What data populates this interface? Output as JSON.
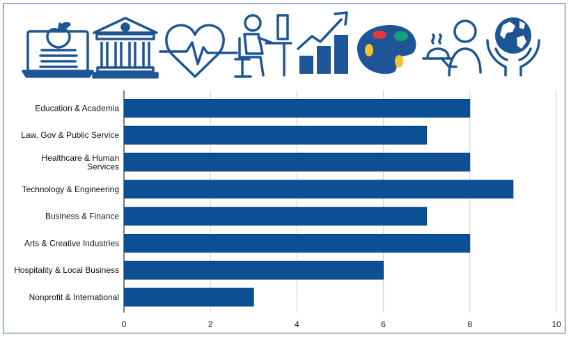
{
  "theme": {
    "bar_color": "#0d4f94",
    "icon_color": "#1e5596",
    "grid_color": "#cfcfcf",
    "frame_color": "#2c5fa0"
  },
  "icons": [
    {
      "name": "laptop-apple-books-icon"
    },
    {
      "name": "government-building-icon"
    },
    {
      "name": "heart-pulse-icon"
    },
    {
      "name": "person-at-computer-icon"
    },
    {
      "name": "growth-bar-chart-icon"
    },
    {
      "name": "paint-palette-icon"
    },
    {
      "name": "waiter-serving-icon"
    },
    {
      "name": "hands-holding-globe-icon"
    }
  ],
  "chart_data": {
    "type": "bar",
    "orientation": "horizontal",
    "categories": [
      [
        "Education & Academia"
      ],
      [
        "Law, Gov & Public Service"
      ],
      [
        "Healthcare & Human",
        "Services"
      ],
      [
        "Technology & Engineering"
      ],
      [
        "Business & Finance"
      ],
      [
        "Arts & Creative Industries"
      ],
      [
        "Hospitality & Local Business"
      ],
      [
        "Nonprofit & International"
      ]
    ],
    "values": [
      8,
      7,
      8,
      9,
      7,
      8,
      6,
      3
    ],
    "xlim": [
      0,
      10
    ],
    "xticks": [
      0,
      2,
      4,
      6,
      8,
      10
    ],
    "xtick_labels": [
      "0",
      "2",
      "4",
      "6",
      "8",
      "10"
    ],
    "grid": "vertical",
    "legend": "none"
  }
}
